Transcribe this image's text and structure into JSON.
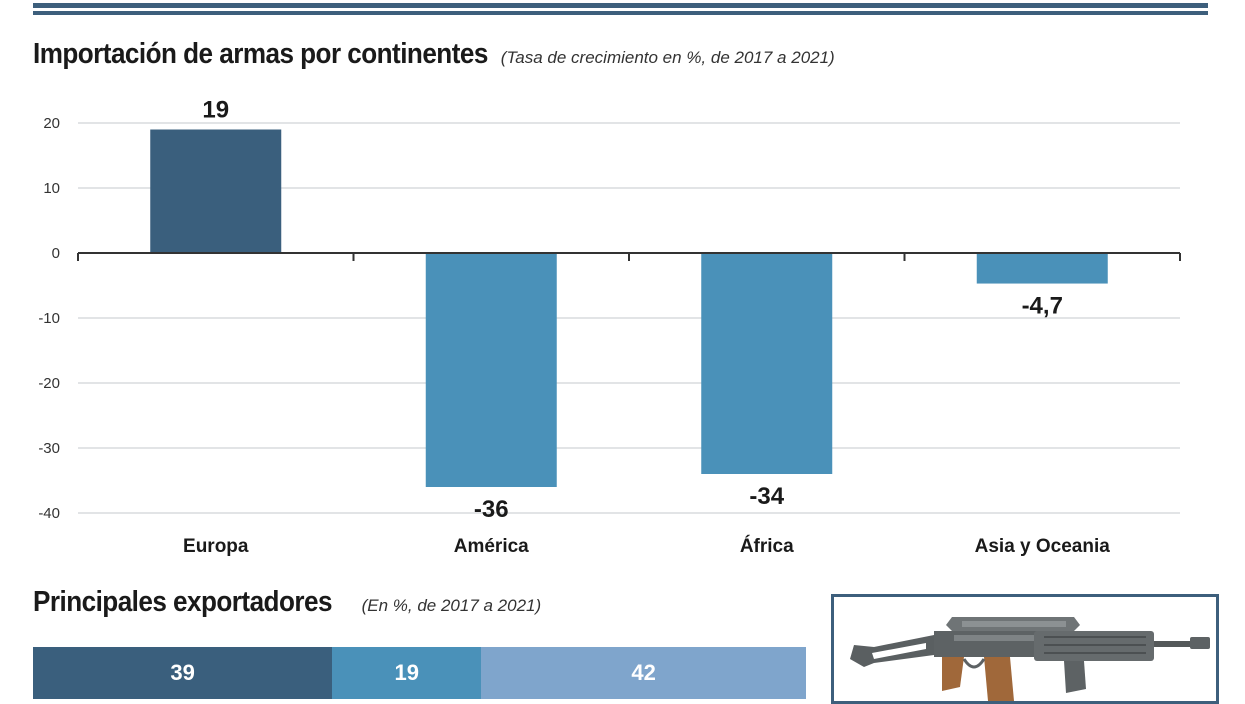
{
  "colors": {
    "dark": "#3a5f7d",
    "mid": "#4a91b9",
    "light": "#7fa5cc",
    "rule": "#3d5f7c"
  },
  "header": {
    "title": "Importación de armas por continentes",
    "subtitle": "(Tasa de crecimiento en %, de 2017 a 2021)"
  },
  "chart_data": [
    {
      "type": "bar",
      "title": "Importación de armas por continentes",
      "subtitle": "(Tasa de crecimiento en %, de 2017 a 2021)",
      "categories": [
        "Europa",
        "América",
        "África",
        "Asia y Oceania"
      ],
      "values": [
        19,
        -36,
        -34,
        -4.7
      ],
      "data_labels": [
        "19",
        "-36",
        "-34",
        "-4,7"
      ],
      "bar_colors": [
        "#3a5f7d",
        "#4a91b9",
        "#4a91b9",
        "#4a91b9"
      ],
      "yticks": [
        20,
        10,
        0,
        -10,
        -20,
        -30,
        -40
      ],
      "ylim": [
        -40,
        20
      ],
      "grid": true,
      "xlabel": "",
      "ylabel": ""
    },
    {
      "type": "bar",
      "stacked": true,
      "title": "Principales exportadores",
      "subtitle": "(En %, de 2017 a 2021)",
      "values": [
        39,
        19,
        42
      ],
      "colors": [
        "#3a5f7d",
        "#4a91b9",
        "#7fa5cc"
      ]
    }
  ],
  "section2": {
    "title": "Principales exportadores",
    "subtitle": "(En %, de 2017 a 2021)"
  },
  "illustration": {
    "icon": "rifle-icon"
  }
}
